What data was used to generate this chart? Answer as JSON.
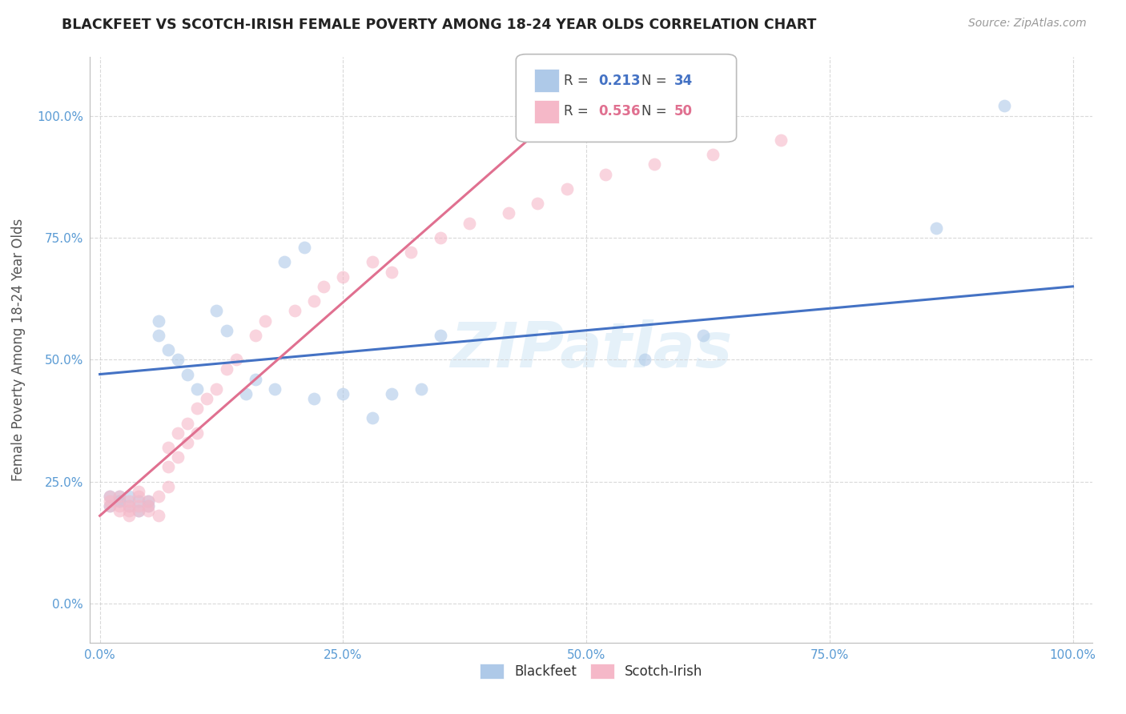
{
  "title": "BLACKFEET VS SCOTCH-IRISH FEMALE POVERTY AMONG 18-24 YEAR OLDS CORRELATION CHART",
  "source": "Source: ZipAtlas.com",
  "ylabel": "Female Poverty Among 18-24 Year Olds",
  "xlim": [
    -0.01,
    1.02
  ],
  "ylim": [
    -0.08,
    1.12
  ],
  "xticks": [
    0.0,
    0.25,
    0.5,
    0.75,
    1.0
  ],
  "xticklabels": [
    "0.0%",
    "25.0%",
    "50.0%",
    "75.0%",
    "100.0%"
  ],
  "yticks": [
    0.0,
    0.25,
    0.5,
    0.75,
    1.0
  ],
  "yticklabels": [
    "0.0%",
    "25.0%",
    "50.0%",
    "75.0%",
    "100.0%"
  ],
  "watermark": "ZIPatlas",
  "blackfeet_color": "#aec9e8",
  "scotchirish_color": "#f5b8c8",
  "line_blue": "#4472c4",
  "line_pink": "#e07090",
  "blackfeet_x": [
    0.01,
    0.01,
    0.02,
    0.02,
    0.02,
    0.03,
    0.03,
    0.04,
    0.04,
    0.05,
    0.05,
    0.06,
    0.06,
    0.07,
    0.08,
    0.09,
    0.1,
    0.12,
    0.13,
    0.15,
    0.16,
    0.18,
    0.19,
    0.21,
    0.22,
    0.25,
    0.28,
    0.3,
    0.33,
    0.35,
    0.56,
    0.62,
    0.86,
    0.93
  ],
  "blackfeet_y": [
    0.2,
    0.22,
    0.21,
    0.21,
    0.22,
    0.2,
    0.22,
    0.19,
    0.21,
    0.2,
    0.21,
    0.55,
    0.58,
    0.52,
    0.5,
    0.47,
    0.44,
    0.6,
    0.56,
    0.43,
    0.46,
    0.44,
    0.7,
    0.73,
    0.42,
    0.43,
    0.38,
    0.43,
    0.44,
    0.55,
    0.5,
    0.55,
    0.77,
    1.02
  ],
  "scotchirish_x": [
    0.01,
    0.01,
    0.01,
    0.02,
    0.02,
    0.02,
    0.03,
    0.03,
    0.03,
    0.03,
    0.04,
    0.04,
    0.04,
    0.04,
    0.05,
    0.05,
    0.05,
    0.06,
    0.06,
    0.07,
    0.07,
    0.07,
    0.08,
    0.08,
    0.09,
    0.09,
    0.1,
    0.1,
    0.11,
    0.12,
    0.13,
    0.14,
    0.16,
    0.17,
    0.2,
    0.22,
    0.23,
    0.25,
    0.28,
    0.3,
    0.32,
    0.35,
    0.38,
    0.42,
    0.45,
    0.48,
    0.52,
    0.57,
    0.63,
    0.7
  ],
  "scotchirish_y": [
    0.2,
    0.21,
    0.22,
    0.19,
    0.2,
    0.22,
    0.18,
    0.19,
    0.2,
    0.21,
    0.19,
    0.2,
    0.22,
    0.23,
    0.19,
    0.2,
    0.21,
    0.18,
    0.22,
    0.24,
    0.28,
    0.32,
    0.3,
    0.35,
    0.33,
    0.37,
    0.35,
    0.4,
    0.42,
    0.44,
    0.48,
    0.5,
    0.55,
    0.58,
    0.6,
    0.62,
    0.65,
    0.67,
    0.7,
    0.68,
    0.72,
    0.75,
    0.78,
    0.8,
    0.82,
    0.85,
    0.88,
    0.9,
    0.92,
    0.95
  ],
  "blackfeet_line_x": [
    0.0,
    1.0
  ],
  "blackfeet_line_y": [
    0.47,
    0.65
  ],
  "scotchirish_line_x": [
    0.0,
    0.48
  ],
  "scotchirish_line_y": [
    0.18,
    1.02
  ]
}
